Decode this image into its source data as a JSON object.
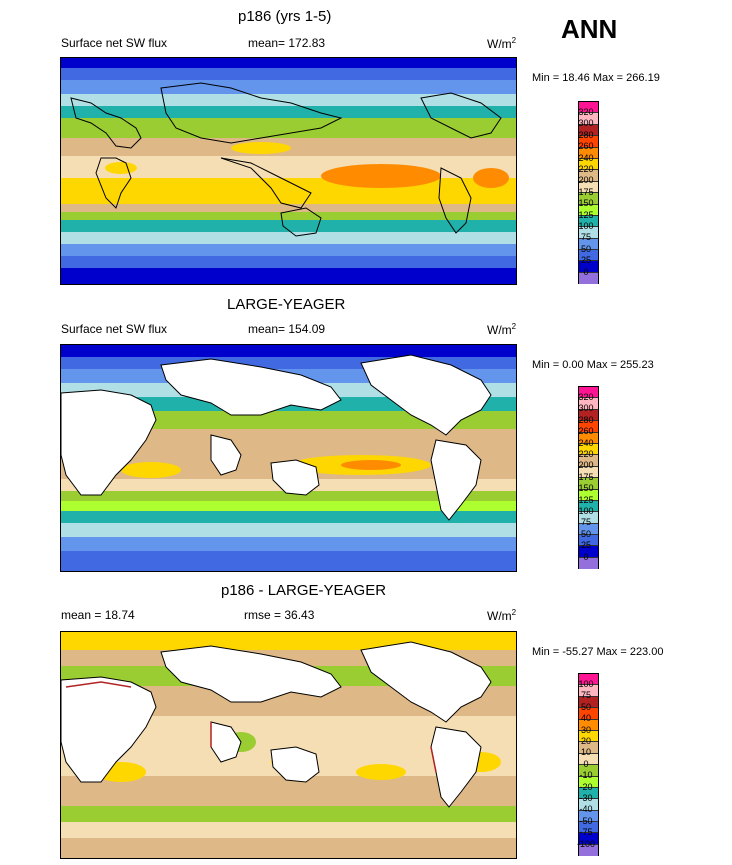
{
  "season": "ANN",
  "panels": [
    {
      "title": "p186 (yrs 1-5)",
      "left_label": "Surface net SW flux",
      "center_label": "mean= 172.83",
      "units_base": "W/m",
      "units_exp": "2",
      "stats": "Min =  18.46 Max = 266.19",
      "colorbar_ticks": [
        "320",
        "300",
        "280",
        "260",
        "240",
        "220",
        "200",
        "175",
        "150",
        "125",
        "100",
        "75",
        "50",
        "25",
        "0"
      ]
    },
    {
      "title": "LARGE-YEAGER",
      "left_label": "Surface net SW flux",
      "center_label": "mean= 154.09",
      "units_base": "W/m",
      "units_exp": "2",
      "stats": "Min =   0.00 Max = 255.23",
      "colorbar_ticks": [
        "320",
        "300",
        "280",
        "260",
        "240",
        "220",
        "200",
        "175",
        "150",
        "125",
        "100",
        "75",
        "50",
        "25",
        "0"
      ]
    },
    {
      "title": "p186 - LARGE-YEAGER",
      "left_label": "mean =  18.74",
      "center_label": "rmse =  36.43",
      "units_base": "W/m",
      "units_exp": "2",
      "stats": "Min = -55.27 Max = 223.00",
      "colorbar_ticks": [
        "100",
        "75",
        "50",
        "40",
        "30",
        "20",
        "10",
        "0",
        "-10",
        "-20",
        "-30",
        "-40",
        "-50",
        "-75",
        "-100"
      ]
    }
  ],
  "colors": {
    "abs_palette": [
      "#ff1493",
      "#ffb6c1",
      "#b22222",
      "#ff4500",
      "#ff8c00",
      "#ffd700",
      "#deb887",
      "#f5deb3",
      "#9acd32",
      "#adff2f",
      "#20b2aa",
      "#b0e0e6",
      "#6495ed",
      "#4169e1",
      "#0000cd",
      "#9370db"
    ],
    "diff_palette": [
      "#ff1493",
      "#ffb6c1",
      "#b22222",
      "#ff4500",
      "#ff8c00",
      "#ffd700",
      "#deb887",
      "#f5deb3",
      "#9acd32",
      "#adff2f",
      "#20b2aa",
      "#b0e0e6",
      "#6495ed",
      "#4169e1",
      "#0000cd",
      "#9370db"
    ]
  }
}
